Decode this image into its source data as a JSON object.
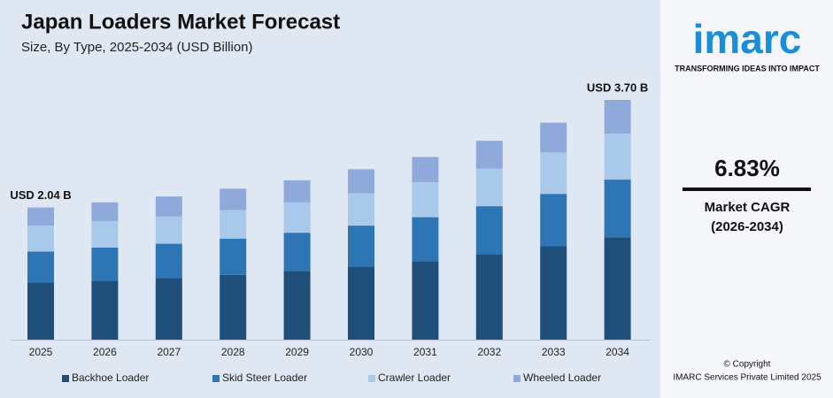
{
  "chart_data": {
    "type": "stacked-bar",
    "title": "Japan Loaders Market Forecast",
    "subtitle": "Size, By Type, 2025-2034 (USD Billion)",
    "categories": [
      "2025",
      "2026",
      "2027",
      "2028",
      "2029",
      "2030",
      "2031",
      "2032",
      "2033",
      "2034"
    ],
    "series": [
      {
        "name": "Backhoe Loader",
        "color": "#1f4e79",
        "values": [
          0.88,
          0.91,
          0.95,
          1.0,
          1.06,
          1.13,
          1.21,
          1.32,
          1.44,
          1.58
        ]
      },
      {
        "name": "Skid Steer Loader",
        "color": "#2e75b6",
        "values": [
          0.48,
          0.51,
          0.53,
          0.56,
          0.59,
          0.63,
          0.68,
          0.74,
          0.81,
          0.89
        ]
      },
      {
        "name": "Crawler Loader",
        "color": "#a9c9ea",
        "values": [
          0.4,
          0.41,
          0.42,
          0.44,
          0.47,
          0.5,
          0.54,
          0.58,
          0.64,
          0.71
        ]
      },
      {
        "name": "Wheeled Loader",
        "color": "#8fa9db",
        "values": [
          0.28,
          0.29,
          0.31,
          0.33,
          0.34,
          0.37,
          0.39,
          0.43,
          0.46,
          0.52
        ]
      }
    ],
    "annotations": [
      "USD 2.04 B",
      "USD 3.70 B"
    ],
    "grid": false
  },
  "sidebar": {
    "logo": "imarc",
    "tagline": "TRANSFORMING IDEAS INTO IMPACT",
    "cagr": "6.83%",
    "cagr_label": "Market CAGR",
    "cagr_period": "(2026-2034)",
    "copyright": "© Copyright",
    "company": "IMARC Services Private Limited 2025"
  }
}
